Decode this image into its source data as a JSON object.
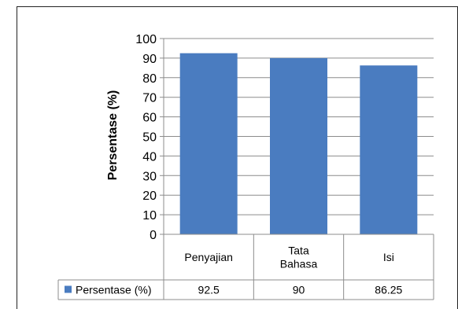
{
  "chart_data": {
    "type": "bar",
    "categories": [
      [
        "Penyajian"
      ],
      [
        "Tata",
        "Bahasa"
      ],
      [
        "Isi"
      ]
    ],
    "series": [
      {
        "name": "Persentase (%)",
        "values": [
          92.5,
          90,
          86.25
        ],
        "value_labels": [
          "92.5",
          "90",
          "86.25"
        ],
        "color": "#4a7cc0"
      }
    ],
    "ylabel": "Persentase (%)",
    "ylim": [
      0,
      100
    ],
    "yticks": [
      0,
      10,
      20,
      30,
      40,
      50,
      60,
      70,
      80,
      90,
      100
    ],
    "grid": true,
    "legend": "data-table",
    "data_table": true
  }
}
